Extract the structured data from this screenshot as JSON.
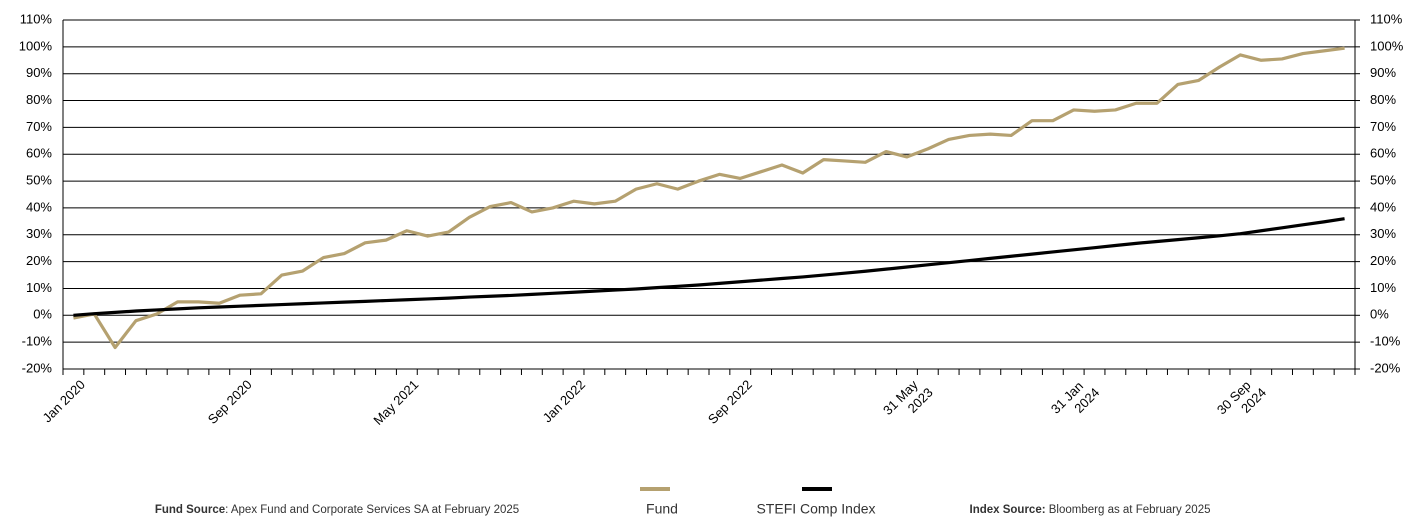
{
  "chart_data": {
    "type": "line",
    "categories": [
      "Jan 2020",
      null,
      null,
      null,
      null,
      null,
      null,
      null,
      "Sep 2020",
      null,
      null,
      null,
      null,
      null,
      null,
      null,
      "May 2021",
      null,
      null,
      null,
      null,
      null,
      null,
      null,
      "Jan 2022",
      null,
      null,
      null,
      null,
      null,
      null,
      null,
      "Sep 2022",
      null,
      null,
      null,
      null,
      null,
      null,
      null,
      "31 May 2023",
      null,
      null,
      null,
      null,
      null,
      null,
      null,
      "31 Jan 2024",
      null,
      null,
      null,
      null,
      null,
      null,
      null,
      "30 Sep 2024",
      null,
      null,
      null,
      null,
      null
    ],
    "series": [
      {
        "name": "Fund",
        "color": "#b5a170",
        "values": [
          -1,
          0.5,
          -12,
          -2,
          0.5,
          5,
          5,
          4.5,
          7.5,
          8,
          15,
          16.5,
          21.5,
          23,
          27,
          28,
          31.5,
          29.5,
          31,
          36.5,
          40.5,
          42,
          38.5,
          40,
          42.5,
          41.5,
          42.5,
          47,
          49,
          47,
          50,
          52.5,
          51,
          53.5,
          56,
          53,
          58,
          57.5,
          57,
          61,
          59,
          62,
          65.5,
          67,
          67.5,
          67,
          72.5,
          72.5,
          76.5,
          76,
          76.5,
          79,
          79,
          86,
          87.5,
          92.5,
          97,
          95,
          95.5,
          97.5,
          98.5,
          99.5
        ]
      },
      {
        "name": "STEFI Comp Index",
        "color": "#000000",
        "values": [
          0,
          0.6,
          1.1,
          1.6,
          2.0,
          2.4,
          2.8,
          3.1,
          3.4,
          3.7,
          4.0,
          4.3,
          4.6,
          4.9,
          5.2,
          5.5,
          5.8,
          6.1,
          6.4,
          6.8,
          7.1,
          7.4,
          7.8,
          8.2,
          8.6,
          9.0,
          9.4,
          9.8,
          10.3,
          10.8,
          11.3,
          11.9,
          12.5,
          13.1,
          13.7,
          14.3,
          15.0,
          15.7,
          16.4,
          17.2,
          18.0,
          18.8,
          19.6,
          20.4,
          21.2,
          22.0,
          22.8,
          23.6,
          24.4,
          25.2,
          26.0,
          26.8,
          27.5,
          28.2,
          28.9,
          29.6,
          30.4,
          31.5,
          32.6,
          33.7,
          34.8,
          36.0
        ]
      }
    ],
    "ylim": [
      -20,
      110
    ],
    "yticks": [
      {
        "value": -20,
        "label": "-20%"
      },
      {
        "value": -10,
        "label": "-10%"
      },
      {
        "value": 0,
        "label": "0%"
      },
      {
        "value": 10,
        "label": "10%"
      },
      {
        "value": 20,
        "label": "20%"
      },
      {
        "value": 30,
        "label": "30%"
      },
      {
        "value": 40,
        "label": "40%"
      },
      {
        "value": 50,
        "label": "50%"
      },
      {
        "value": 60,
        "label": "60%"
      },
      {
        "value": 70,
        "label": "70%"
      },
      {
        "value": 80,
        "label": "80%"
      },
      {
        "value": 90,
        "label": "90%"
      },
      {
        "value": 100,
        "label": "100%"
      },
      {
        "value": 110,
        "label": "110%"
      }
    ],
    "y2lim": [
      -20,
      110
    ],
    "y2ticks": [
      {
        "value": -20,
        "label": "-20%"
      },
      {
        "value": -10,
        "label": "-10%"
      },
      {
        "value": 0,
        "label": "0%"
      },
      {
        "value": 10,
        "label": "10%"
      },
      {
        "value": 20,
        "label": "20%"
      },
      {
        "value": 30,
        "label": "30%"
      },
      {
        "value": 40,
        "label": "40%"
      },
      {
        "value": 50,
        "label": "50%"
      },
      {
        "value": 60,
        "label": "60%"
      },
      {
        "value": 70,
        "label": "70%"
      },
      {
        "value": 80,
        "label": "80%"
      },
      {
        "value": 90,
        "label": "90%"
      },
      {
        "value": 100,
        "label": "100%"
      },
      {
        "value": 110,
        "label": "110%"
      }
    ],
    "grid": true,
    "legend": "bottom",
    "notes": [
      {
        "bold": "Fund Source",
        "text": ": Apex Fund and Corporate Services SA at February 2025"
      },
      {
        "bold": "Index Source:",
        "text": " Bloomberg as at February 2025"
      }
    ]
  }
}
